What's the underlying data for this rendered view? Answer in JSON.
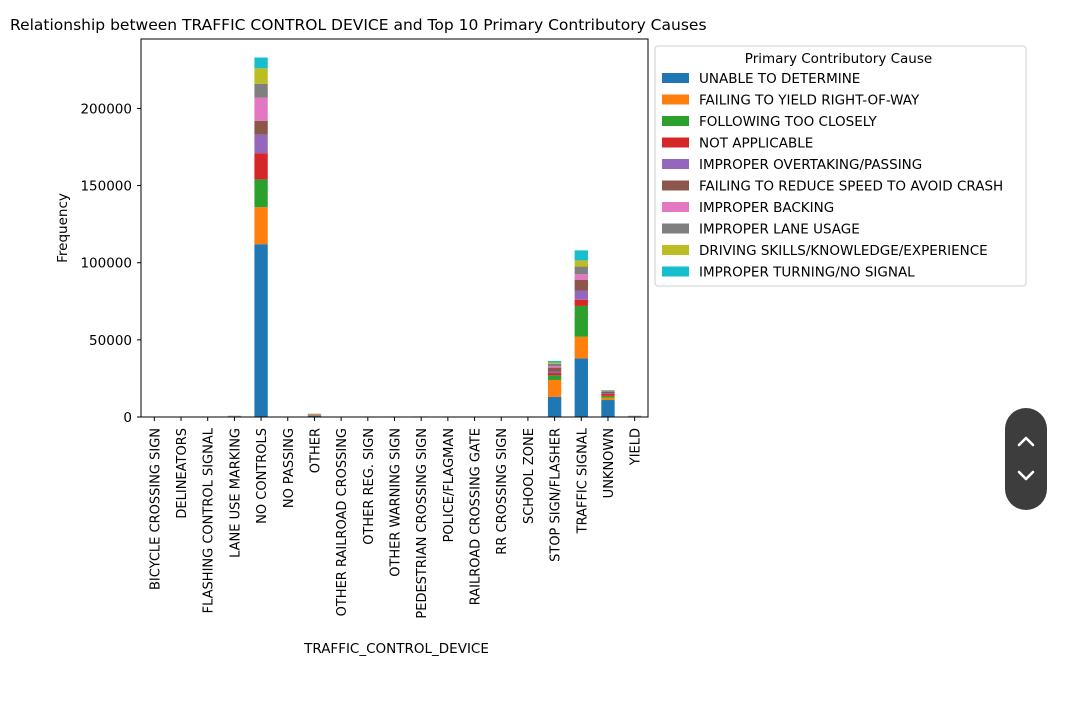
{
  "chart_data": {
    "type": "bar",
    "stacked": true,
    "title": "Relationship between TRAFFIC CONTROL DEVICE and Top 10 Primary Contributory Causes",
    "xlabel": "TRAFFIC_CONTROL_DEVICE",
    "ylabel": "Frequency",
    "ylim": [
      0,
      245000
    ],
    "yticks": [
      0,
      50000,
      100000,
      150000,
      200000
    ],
    "grid": false,
    "legend_title": "Primary Contributory Cause",
    "legend_position": "outside-top-right",
    "categories": [
      "BICYCLE CROSSING SIGN",
      "DELINEATORS",
      "FLASHING CONTROL SIGNAL",
      "LANE USE MARKING",
      "NO CONTROLS",
      "NO PASSING",
      "OTHER",
      "OTHER RAILROAD CROSSING",
      "OTHER REG. SIGN",
      "OTHER WARNING SIGN",
      "PEDESTRIAN CROSSING SIGN",
      "POLICE/FLAGMAN",
      "RAILROAD CROSSING GATE",
      "RR CROSSING SIGN",
      "SCHOOL ZONE",
      "STOP SIGN/FLASHER",
      "TRAFFIC SIGNAL",
      "UNKNOWN",
      "YIELD"
    ],
    "series": [
      {
        "name": "UNABLE TO DETERMINE",
        "color": "#1f77b4",
        "values": [
          20,
          20,
          100,
          300,
          112000,
          20,
          700,
          10,
          100,
          100,
          100,
          100,
          30,
          30,
          100,
          13000,
          38000,
          11000,
          200
        ]
      },
      {
        "name": "FAILING TO YIELD RIGHT-OF-WAY",
        "color": "#ff7f0e",
        "values": [
          10,
          10,
          50,
          100,
          24000,
          5,
          300,
          5,
          50,
          50,
          80,
          50,
          20,
          20,
          50,
          11000,
          14000,
          1500,
          200
        ]
      },
      {
        "name": "FOLLOWING TOO CLOSELY",
        "color": "#2ca02c",
        "values": [
          5,
          5,
          30,
          100,
          18000,
          5,
          300,
          5,
          50,
          50,
          50,
          50,
          10,
          10,
          50,
          3000,
          20000,
          1200,
          100
        ]
      },
      {
        "name": "NOT APPLICABLE",
        "color": "#d62728",
        "values": [
          5,
          5,
          20,
          50,
          17000,
          5,
          200,
          5,
          30,
          30,
          30,
          30,
          10,
          10,
          30,
          1500,
          4000,
          1200,
          50
        ]
      },
      {
        "name": "IMPROPER OVERTAKING/PASSING",
        "color": "#9467bd",
        "values": [
          5,
          5,
          10,
          50,
          12000,
          5,
          100,
          5,
          20,
          20,
          20,
          20,
          5,
          5,
          20,
          1000,
          6000,
          400,
          50
        ]
      },
      {
        "name": "FAILING TO REDUCE SPEED TO AVOID CRASH",
        "color": "#8c564b",
        "values": [
          5,
          5,
          10,
          50,
          9000,
          5,
          100,
          5,
          20,
          20,
          20,
          20,
          5,
          5,
          20,
          2500,
          7000,
          900,
          50
        ]
      },
      {
        "name": "IMPROPER BACKING",
        "color": "#e377c2",
        "values": [
          5,
          5,
          10,
          50,
          15000,
          5,
          200,
          5,
          20,
          20,
          20,
          20,
          5,
          5,
          20,
          1000,
          3500,
          300,
          50
        ]
      },
      {
        "name": "IMPROPER LANE USAGE",
        "color": "#7f7f7f",
        "values": [
          5,
          5,
          10,
          50,
          9000,
          5,
          100,
          5,
          20,
          20,
          20,
          20,
          5,
          5,
          20,
          1500,
          5000,
          400,
          50
        ]
      },
      {
        "name": "DRIVING SKILLS/KNOWLEDGE/EXPERIENCE",
        "color": "#bcbd22",
        "values": [
          5,
          5,
          10,
          50,
          10000,
          5,
          100,
          5,
          20,
          20,
          20,
          20,
          5,
          5,
          20,
          800,
          4000,
          300,
          50
        ]
      },
      {
        "name": "IMPROPER TURNING/NO SIGNAL",
        "color": "#17becf",
        "values": [
          5,
          5,
          10,
          50,
          7000,
          5,
          100,
          5,
          20,
          20,
          20,
          20,
          5,
          5,
          20,
          1000,
          6500,
          300,
          50
        ]
      }
    ]
  },
  "scroll_controls": {
    "up_icon": "chevron-up-icon",
    "down_icon": "chevron-down-icon"
  }
}
